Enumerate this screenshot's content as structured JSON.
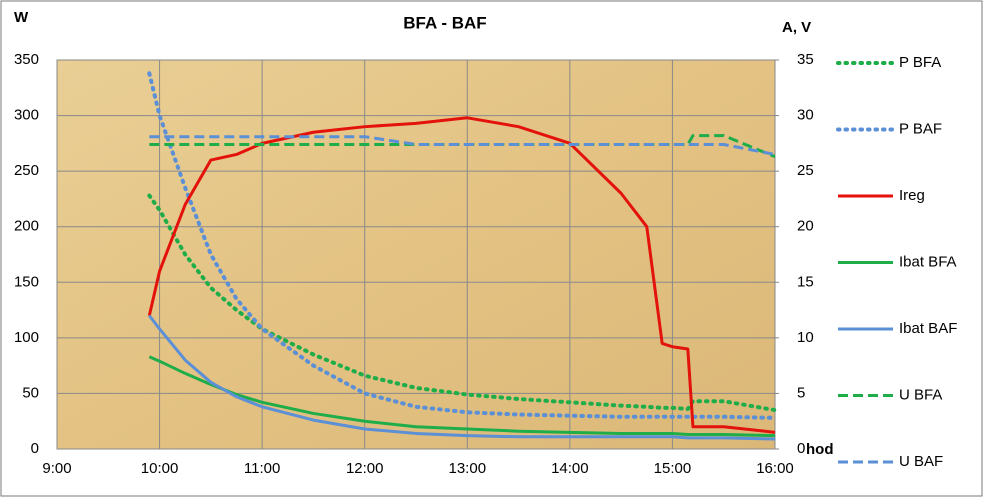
{
  "chart_data": {
    "type": "line",
    "title": "BFA - BAF",
    "ylabel": "W",
    "y2label": "A, V",
    "xlabel": "hod",
    "x": [
      9.9,
      10.0,
      10.25,
      10.5,
      10.75,
      11.0,
      11.5,
      12.0,
      12.5,
      13.0,
      13.5,
      14.0,
      14.5,
      14.75,
      14.9,
      15.0,
      15.15,
      15.2,
      15.5,
      16.0
    ],
    "xlim": [
      9,
      16
    ],
    "xticks": [
      {
        "value": 9,
        "label": "9:00"
      },
      {
        "value": 10,
        "label": "10:00"
      },
      {
        "value": 11,
        "label": "11:00"
      },
      {
        "value": 12,
        "label": "12:00"
      },
      {
        "value": 13,
        "label": "13:00"
      },
      {
        "value": 14,
        "label": "14:00"
      },
      {
        "value": 15,
        "label": "15:00"
      },
      {
        "value": 16,
        "label": "16:00"
      }
    ],
    "ylim": [
      0,
      350
    ],
    "yticks": [
      0,
      50,
      100,
      150,
      200,
      250,
      300,
      350
    ],
    "y2lim": [
      0,
      35
    ],
    "y2ticks": [
      0,
      5,
      10,
      15,
      20,
      25,
      30,
      35
    ],
    "grid": true,
    "series": [
      {
        "name": "P BFA",
        "color": "#1fad4a",
        "dash": "dotted",
        "values": [
          228,
          215,
          175,
          145,
          125,
          108,
          85,
          66,
          55,
          49,
          45,
          42,
          39,
          38,
          37,
          37,
          36,
          43,
          43,
          35
        ]
      },
      {
        "name": "P BAF",
        "color": "#5b8fd6",
        "dash": "dotted",
        "values": [
          338,
          300,
          235,
          175,
          135,
          108,
          75,
          50,
          38,
          33,
          31,
          30,
          29,
          29,
          29,
          29,
          29,
          29,
          29,
          28
        ]
      },
      {
        "name": "Ireg",
        "color": "#e3120b",
        "dash": "solid",
        "axis": "y2",
        "values": [
          12,
          16,
          22,
          26,
          26.5,
          27.5,
          28.5,
          29,
          29.3,
          29.8,
          29,
          27.5,
          23,
          20,
          9.5,
          9.2,
          9,
          2,
          2,
          1.5
        ]
      },
      {
        "name": "Ibat BFA",
        "color": "#1fad4a",
        "dash": "solid",
        "axis": "y2",
        "values": [
          8.3,
          7.9,
          6.8,
          5.8,
          4.9,
          4.2,
          3.2,
          2.5,
          2.0,
          1.8,
          1.6,
          1.5,
          1.4,
          1.4,
          1.4,
          1.4,
          1.3,
          1.3,
          1.3,
          1.2
        ]
      },
      {
        "name": "Ibat BAF",
        "color": "#5b8fd6",
        "dash": "solid",
        "axis": "y2",
        "values": [
          12,
          10.8,
          8,
          6,
          4.7,
          3.8,
          2.6,
          1.8,
          1.4,
          1.2,
          1.1,
          1.1,
          1.1,
          1.1,
          1.1,
          1.1,
          1.0,
          1.0,
          1.0,
          0.9
        ]
      },
      {
        "name": "U BFA",
        "color": "#1fad4a",
        "dash": "dashed",
        "axis": "y2",
        "values": [
          27.4,
          27.4,
          27.4,
          27.4,
          27.4,
          27.4,
          27.4,
          27.4,
          27.4,
          27.4,
          27.4,
          27.4,
          27.4,
          27.4,
          27.4,
          27.4,
          27.4,
          28.2,
          28.2,
          26.3
        ]
      },
      {
        "name": "U BAF",
        "color": "#5b8fd6",
        "dash": "dashed",
        "axis": "y2",
        "values": [
          28.1,
          28.1,
          28.1,
          28.1,
          28.1,
          28.1,
          28.1,
          28.1,
          27.4,
          27.4,
          27.4,
          27.4,
          27.4,
          27.4,
          27.4,
          27.4,
          27.4,
          27.4,
          27.4,
          26.5
        ]
      }
    ]
  }
}
